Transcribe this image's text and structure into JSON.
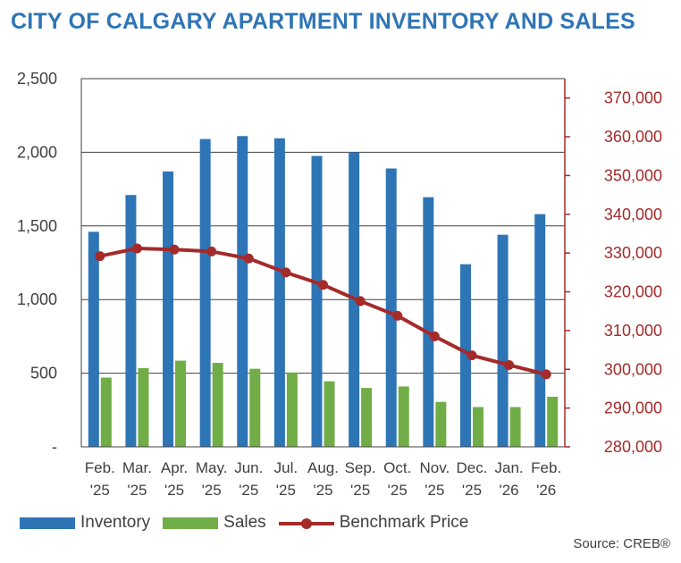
{
  "title": "CITY OF CALGARY APARTMENT INVENTORY AND SALES",
  "source": "Source: CREB®",
  "colors": {
    "title": "#2e75b6",
    "inventory": "#2e75b6",
    "sales": "#70ad47",
    "benchmark": "#a52a2a",
    "text": "#404040"
  },
  "chart_data": {
    "type": "bar",
    "title": "CITY OF CALGARY APARTMENT INVENTORY AND SALES",
    "categories": [
      [
        "Feb.",
        "'25"
      ],
      [
        "Mar.",
        "'25"
      ],
      [
        "Apr.",
        "'25"
      ],
      [
        "May.",
        "'25"
      ],
      [
        "Jun.",
        "'25"
      ],
      [
        "Jul.",
        "'25"
      ],
      [
        "Aug.",
        "'25"
      ],
      [
        "Sep.",
        "'25"
      ],
      [
        "Oct.",
        "'25"
      ],
      [
        "Nov.",
        "'25"
      ],
      [
        "Dec.",
        "'25"
      ],
      [
        "Jan.",
        "'26"
      ],
      [
        "Feb.",
        "'26"
      ]
    ],
    "series": [
      {
        "name": "Inventory",
        "type": "bar",
        "axis": "left",
        "values": [
          1460,
          1710,
          1870,
          2090,
          2110,
          2095,
          1975,
          2000,
          1890,
          1695,
          1240,
          1440,
          1580
        ]
      },
      {
        "name": "Sales",
        "type": "bar",
        "axis": "left",
        "values": [
          470,
          535,
          585,
          570,
          530,
          505,
          445,
          400,
          410,
          305,
          270,
          270,
          340
        ]
      },
      {
        "name": "Benchmark Price",
        "type": "line",
        "axis": "right",
        "values": [
          329200,
          331200,
          330900,
          330400,
          328600,
          325000,
          321800,
          317600,
          313800,
          308500,
          303600,
          301100,
          298700
        ]
      }
    ],
    "y_left": {
      "ylim": [
        0,
        2500
      ],
      "ticks": [
        0,
        500,
        1000,
        1500,
        2000,
        2500
      ],
      "tick_labels": [
        "-",
        "500",
        "1,000",
        "1,500",
        "2,000",
        "2,500"
      ]
    },
    "y_right": {
      "ylim": [
        280000,
        375000
      ],
      "ticks": [
        280000,
        290000,
        300000,
        310000,
        320000,
        330000,
        340000,
        350000,
        360000,
        370000
      ],
      "tick_labels": [
        "280,000",
        "290,000",
        "300,000",
        "310,000",
        "320,000",
        "330,000",
        "340,000",
        "350,000",
        "360,000",
        "370,000"
      ]
    },
    "legend_position": "bottom-left",
    "grid": "horizontal"
  }
}
